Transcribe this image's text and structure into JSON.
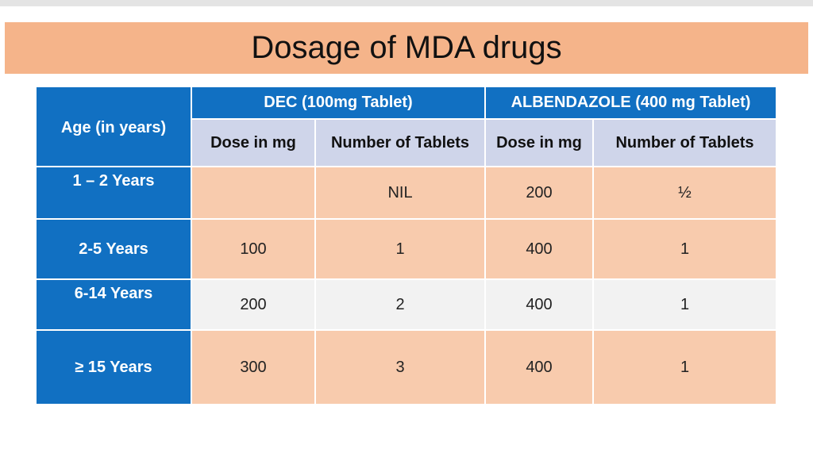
{
  "header": {
    "title": "Dosage of MDA drugs"
  },
  "table": {
    "corner": "Age (in years)",
    "groups": [
      "DEC  (100mg Tablet)",
      "ALBENDAZOLE  (400 mg Tablet)"
    ],
    "columns": [
      "Dose in mg",
      "Number of Tablets",
      "Dose in mg",
      "Number of Tablets"
    ],
    "rows": [
      [
        "1 – 2 Years",
        null,
        "NIL",
        "200",
        "½"
      ],
      [
        "2-5 Years",
        "100",
        "1",
        "400",
        "1"
      ],
      [
        "6-14 Years",
        "200",
        "2",
        "400",
        "1"
      ],
      [
        "≥ 15 Years",
        "300",
        "3",
        "400",
        "1"
      ]
    ]
  }
}
